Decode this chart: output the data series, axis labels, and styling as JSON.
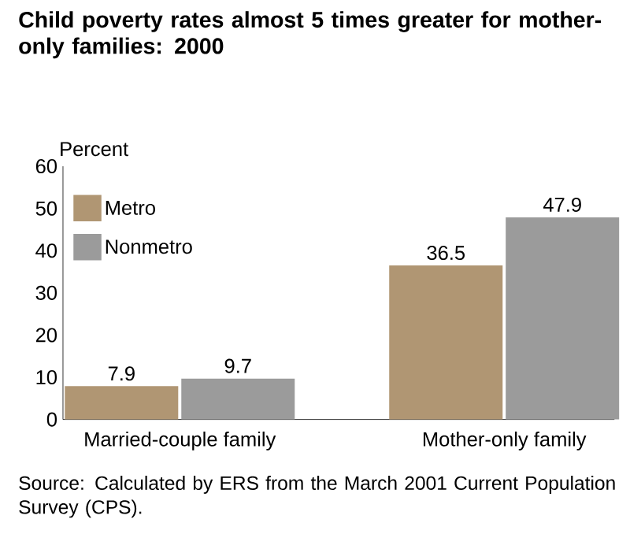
{
  "chart_data": {
    "type": "bar",
    "title": "Child poverty rates almost 5 times greater for mother-only families:  2000",
    "ylabel": "Percent",
    "categories": [
      "Married-couple family",
      "Mother-only family"
    ],
    "series": [
      {
        "name": "Metro",
        "color": "#b09673",
        "values": [
          7.9,
          36.5
        ]
      },
      {
        "name": "Nonmetro",
        "color": "#9b9b9b",
        "values": [
          9.7,
          47.9
        ]
      }
    ],
    "ylim": [
      0,
      60
    ],
    "yticks": [
      0,
      10,
      20,
      30,
      40,
      50,
      60
    ],
    "data_labels": true,
    "legend": "top left",
    "grid": false,
    "annotations": [
      "Source:  Calculated by ERS from the March 2001 Current Population Survey (CPS)."
    ]
  }
}
